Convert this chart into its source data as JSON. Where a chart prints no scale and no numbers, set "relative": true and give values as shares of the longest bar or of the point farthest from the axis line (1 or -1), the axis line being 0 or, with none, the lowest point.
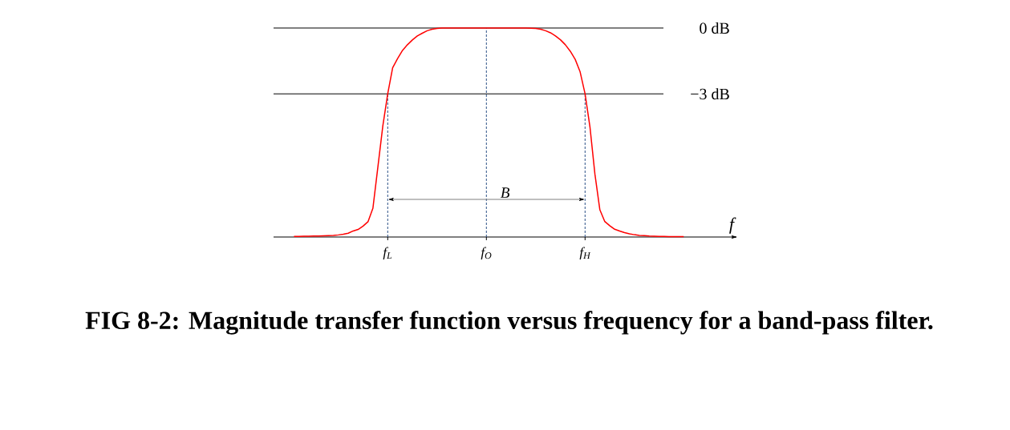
{
  "chart_data": {
    "type": "line",
    "title": "FIG 8-2: Magnitude transfer function versus frequency for a band-pass filter.",
    "xlabel": "f",
    "relative": true,
    "color": "#ff0000",
    "categories": [
      null,
      null,
      null,
      null,
      null,
      null,
      null,
      null,
      null,
      null,
      null,
      null,
      null,
      null,
      null,
      null,
      null,
      null,
      null,
      "f$_{L}$",
      null,
      null,
      null,
      null,
      null,
      null,
      null,
      null,
      null,
      null,
      null,
      null,
      null,
      null,
      null,
      null,
      null,
      null,
      null,
      "f$_{O}$",
      null,
      null,
      null,
      null,
      null,
      null,
      null,
      null,
      null,
      null,
      null,
      null,
      null,
      null,
      null,
      null,
      null,
      null,
      null,
      "f$_{H}$",
      null,
      null,
      null,
      null,
      null,
      null,
      null,
      null,
      null,
      null,
      null,
      null,
      null,
      null,
      null,
      null,
      null,
      null,
      null,
      null
    ],
    "values": [
      0.003,
      0.003,
      0.004,
      0.004,
      0.005,
      0.005,
      0.006,
      0.007,
      0.008,
      0.01,
      0.013,
      0.018,
      0.029,
      0.036,
      0.052,
      0.073,
      0.138,
      0.334,
      0.53,
      0.685,
      0.81,
      0.854,
      0.893,
      0.92,
      0.943,
      0.962,
      0.975,
      0.987,
      0.994,
      0.998,
      1,
      1,
      1,
      1,
      1,
      1,
      1,
      1,
      1,
      1,
      1,
      1,
      1,
      1,
      1,
      1,
      1,
      1,
      0.999,
      0.998,
      0.994,
      0.987,
      0.977,
      0.962,
      0.944,
      0.92,
      0.889,
      0.85,
      0.79,
      0.685,
      0.525,
      0.3,
      0.13,
      0.074,
      0.054,
      0.037,
      0.029,
      0.021,
      0.015,
      0.011,
      0.008,
      0.007,
      0.005,
      0.004,
      0.003,
      0.003,
      0.002,
      0.002,
      0.002,
      0.002
    ],
    "ref_lines": [
      {
        "axis": "y",
        "value": 1,
        "label": "0 dB",
        "color": "#000000"
      },
      {
        "axis": "y",
        "value": 0.685,
        "label": "−3 dB",
        "color": "#000000"
      },
      {
        "axis": "x",
        "value": "f$_{L}$",
        "color": "#2b4f86",
        "line_style": "dashed"
      },
      {
        "axis": "x",
        "value": "f$_{O}$",
        "color": "#2b4f86",
        "line_style": "dashed"
      },
      {
        "axis": "x",
        "value": "f$_{H}$",
        "color": "#2b4f86",
        "line_style": "dashed"
      }
    ],
    "annotations": [
      "B"
    ]
  }
}
